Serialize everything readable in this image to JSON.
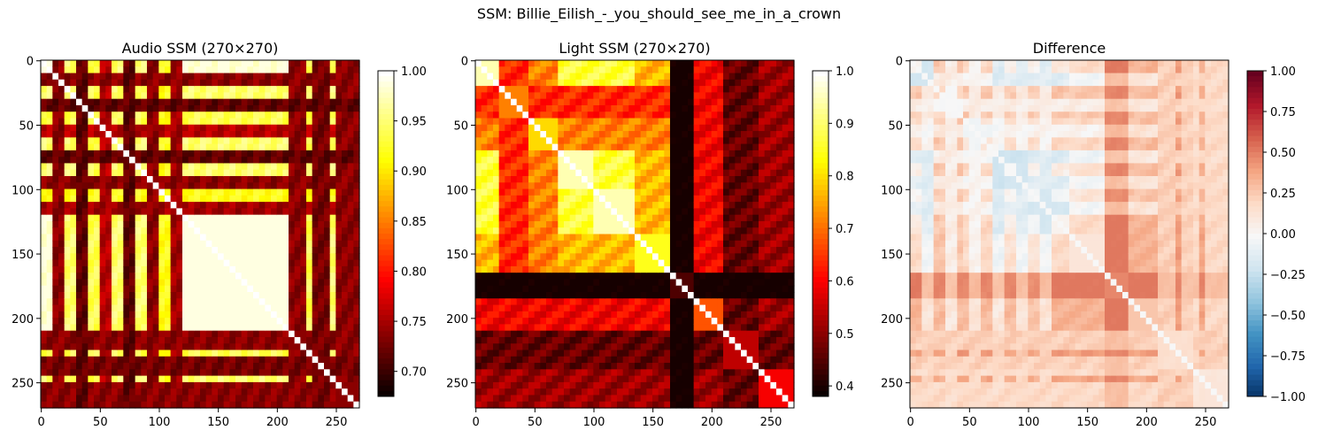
{
  "suptitle": "SSM: Billie_Eilish_-_you_should_see_me_in_a_crown",
  "chart_data": [
    {
      "type": "heatmap",
      "title": "Audio SSM (270×270)",
      "size": 270,
      "colormap": "hot",
      "xticks": [
        0,
        50,
        100,
        150,
        200,
        250
      ],
      "yticks": [
        0,
        50,
        100,
        150,
        200,
        250
      ],
      "colorbar": {
        "range": [
          0.675,
          1.0
        ],
        "ticks": [
          0.7,
          0.75,
          0.8,
          0.85,
          0.9,
          0.95,
          1.0
        ],
        "tick_labels": [
          "0.70",
          "0.75",
          "0.80",
          "0.85",
          "0.90",
          "0.95",
          "1.00"
        ]
      },
      "segments": [
        {
          "start": 0,
          "end": 8,
          "level": 0.97
        },
        {
          "start": 8,
          "end": 20,
          "level": 0.72
        },
        {
          "start": 20,
          "end": 28,
          "level": 0.93
        },
        {
          "start": 28,
          "end": 40,
          "level": 0.7
        },
        {
          "start": 40,
          "end": 48,
          "level": 0.92
        },
        {
          "start": 48,
          "end": 60,
          "level": 0.74
        },
        {
          "start": 60,
          "end": 68,
          "level": 0.93
        },
        {
          "start": 68,
          "end": 80,
          "level": 0.7
        },
        {
          "start": 80,
          "end": 88,
          "level": 0.93
        },
        {
          "start": 88,
          "end": 100,
          "level": 0.72
        },
        {
          "start": 100,
          "end": 110,
          "level": 0.9
        },
        {
          "start": 110,
          "end": 118,
          "level": 0.73
        },
        {
          "start": 118,
          "end": 212,
          "level": 0.97
        },
        {
          "start": 212,
          "end": 225,
          "level": 0.72
        },
        {
          "start": 225,
          "end": 232,
          "level": 0.92
        },
        {
          "start": 232,
          "end": 246,
          "level": 0.71
        },
        {
          "start": 246,
          "end": 252,
          "level": 0.93
        },
        {
          "start": 252,
          "end": 270,
          "level": 0.72
        }
      ]
    },
    {
      "type": "heatmap",
      "title": "Light SSM (270×270)",
      "size": 270,
      "colormap": "hot",
      "xticks": [
        0,
        50,
        100,
        150,
        200,
        250
      ],
      "yticks": [
        0,
        50,
        100,
        150,
        200,
        250
      ],
      "colorbar": {
        "range": [
          0.38,
          1.0
        ],
        "ticks": [
          0.4,
          0.5,
          0.6,
          0.7,
          0.8,
          0.9,
          1.0
        ],
        "tick_labels": [
          "0.4",
          "0.5",
          "0.6",
          "0.7",
          "0.8",
          "0.9",
          "1.0"
        ]
      },
      "segments": [
        {
          "start": 0,
          "end": 22,
          "level": 0.95
        },
        {
          "start": 22,
          "end": 45,
          "level": 0.72
        },
        {
          "start": 45,
          "end": 70,
          "level": 0.8
        },
        {
          "start": 70,
          "end": 100,
          "level": 0.95
        },
        {
          "start": 100,
          "end": 135,
          "level": 0.95
        },
        {
          "start": 135,
          "end": 165,
          "level": 0.85
        },
        {
          "start": 165,
          "end": 185,
          "level": 0.45
        },
        {
          "start": 185,
          "end": 210,
          "level": 0.68
        },
        {
          "start": 210,
          "end": 240,
          "level": 0.55
        },
        {
          "start": 240,
          "end": 270,
          "level": 0.6
        }
      ]
    },
    {
      "type": "heatmap",
      "title": "Difference",
      "size": 270,
      "colormap": "RdBu_r",
      "xticks": [
        0,
        50,
        100,
        150,
        200,
        250
      ],
      "yticks": [
        0,
        50,
        100,
        150,
        200,
        250
      ],
      "colorbar": {
        "range": [
          -1.0,
          1.0
        ],
        "ticks": [
          -1.0,
          -0.75,
          -0.5,
          -0.25,
          0.0,
          0.25,
          0.5,
          0.75,
          1.0
        ],
        "tick_labels": [
          "−1.00",
          "−0.75",
          "−0.50",
          "−0.25",
          "0.00",
          "0.25",
          "0.50",
          "0.75",
          "1.00"
        ]
      }
    }
  ]
}
